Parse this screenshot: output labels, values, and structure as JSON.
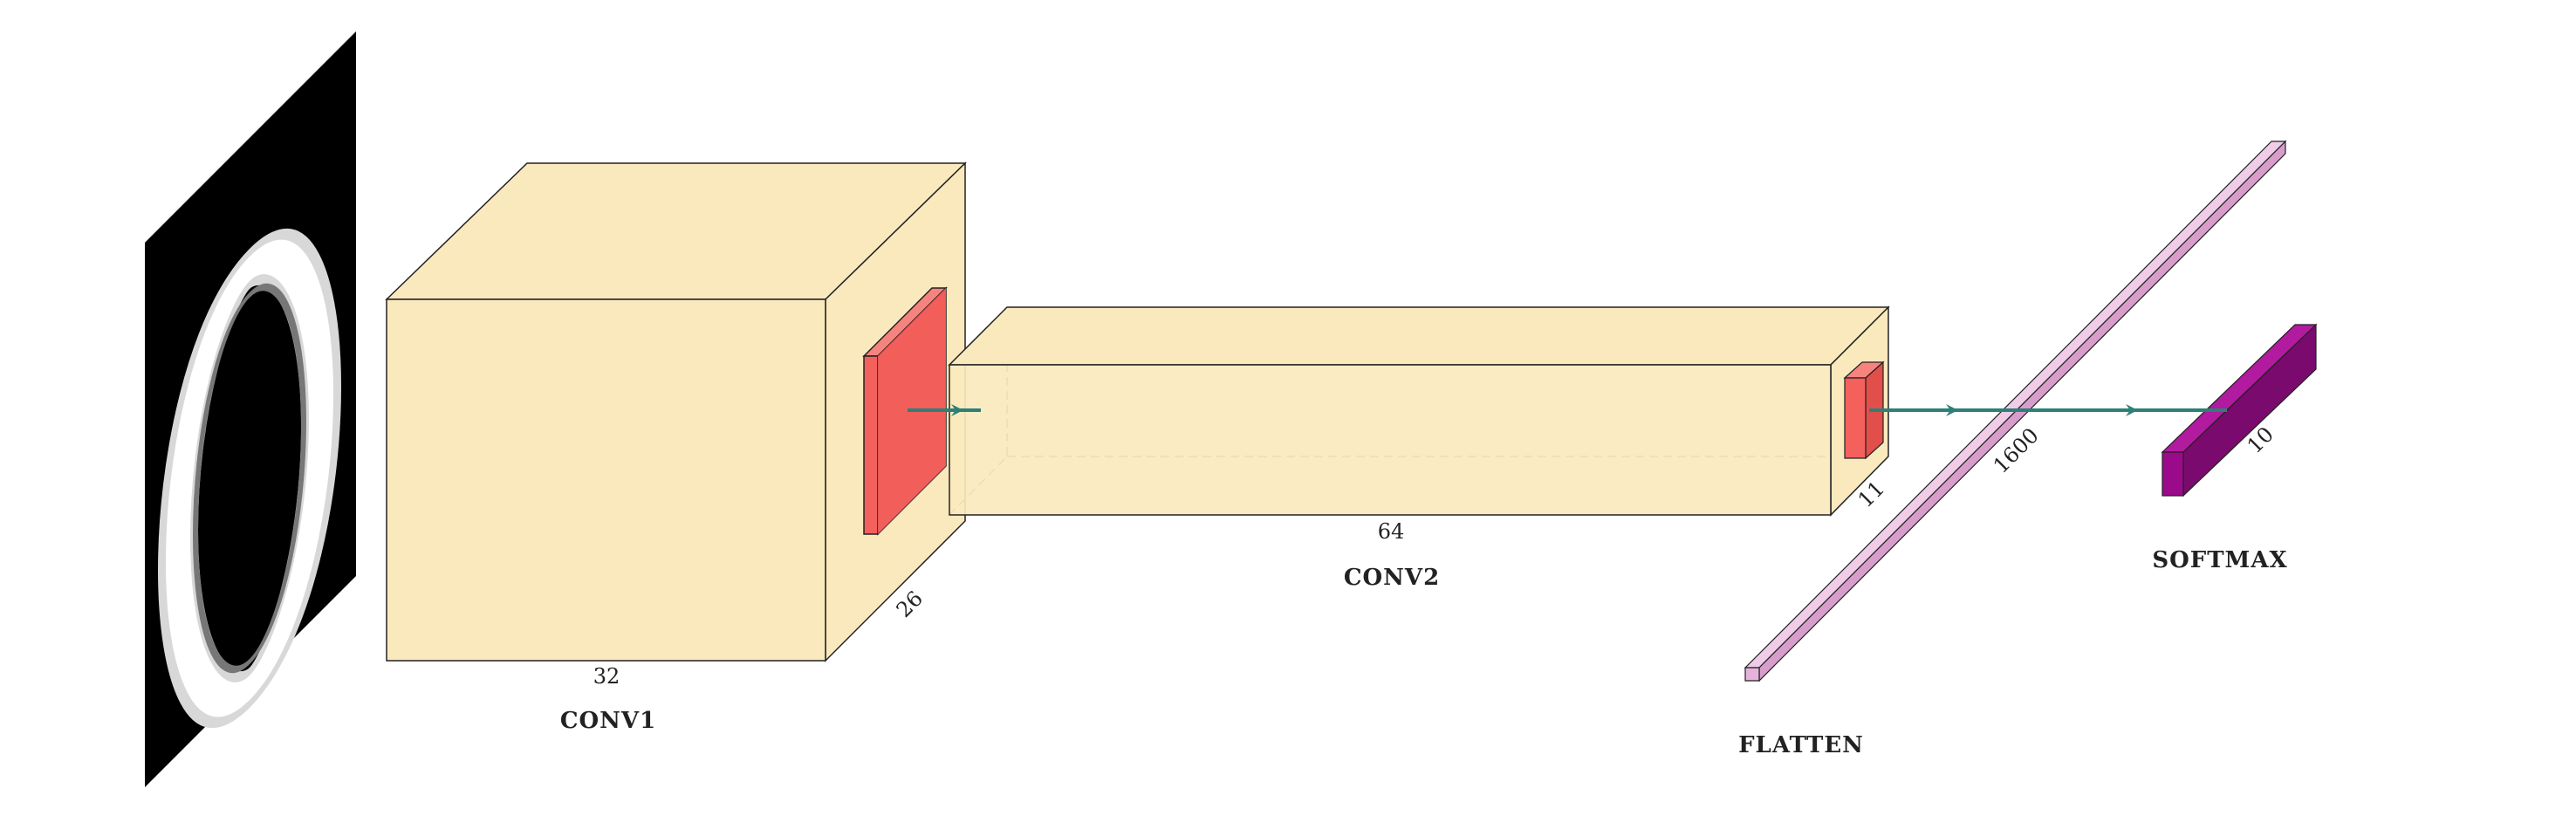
{
  "diagram": {
    "input_image": {
      "description_icon": "digit-zero-image"
    },
    "layers": [
      {
        "name": "CONV1",
        "width_label": "32",
        "depth_label": "26"
      },
      {
        "name": "CONV2",
        "width_label": "64",
        "depth_label": "11"
      },
      {
        "name": "FLATTEN",
        "size_label": "1600"
      },
      {
        "name": "SOFTMAX",
        "size_label": "10"
      }
    ]
  },
  "colors": {
    "conv_fill": "#fbe9be",
    "kernel_fill": "#f4605c",
    "flatten_fill": "#e6b2da",
    "softmax_fill": "#9c0a8c",
    "arrow": "#2e7f78"
  }
}
